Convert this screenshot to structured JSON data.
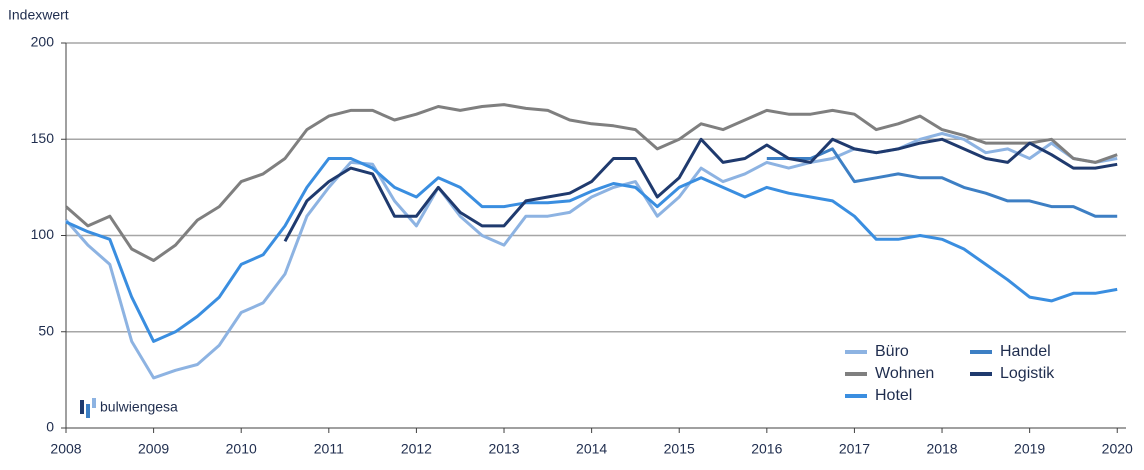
{
  "chart_data": {
    "type": "line",
    "y_axis_label": "Indexwert",
    "logo": "bulwiengesa",
    "x": [
      2008,
      2008.25,
      2008.5,
      2008.75,
      2009,
      2009.25,
      2009.5,
      2009.75,
      2010,
      2010.25,
      2010.5,
      2010.75,
      2011,
      2011.25,
      2011.5,
      2011.75,
      2012,
      2012.25,
      2012.5,
      2012.75,
      2013,
      2013.25,
      2013.5,
      2013.75,
      2014,
      2014.25,
      2014.5,
      2014.75,
      2015,
      2015.25,
      2015.5,
      2015.75,
      2016,
      2016.25,
      2016.5,
      2016.75,
      2017,
      2017.25,
      2017.5,
      2017.75,
      2018,
      2018.25,
      2018.5,
      2018.75,
      2019,
      2019.25,
      2019.5,
      2019.75,
      2020
    ],
    "series": [
      {
        "name": "Büro",
        "color": "#8db3e2",
        "values": [
          108,
          95,
          85,
          45,
          26,
          30,
          33,
          43,
          60,
          65,
          80,
          110,
          125,
          138,
          137,
          118,
          105,
          125,
          110,
          100,
          95,
          110,
          110,
          112,
          120,
          125,
          128,
          110,
          120,
          135,
          128,
          132,
          138,
          135,
          138,
          140,
          145,
          143,
          145,
          150,
          153,
          150,
          143,
          145,
          140,
          148,
          140,
          138,
          140
        ]
      },
      {
        "name": "Wohnen",
        "color": "#7f7f7f",
        "values": [
          115,
          105,
          110,
          93,
          87,
          95,
          108,
          115,
          128,
          132,
          140,
          155,
          162,
          165,
          165,
          160,
          163,
          167,
          165,
          167,
          168,
          166,
          165,
          160,
          158,
          157,
          155,
          145,
          150,
          158,
          155,
          160,
          165,
          163,
          163,
          165,
          163,
          155,
          158,
          162,
          155,
          152,
          148,
          148,
          148,
          150,
          140,
          138,
          142
        ]
      },
      {
        "name": "Hotel",
        "color": "#3a8ee0",
        "values": [
          107,
          102,
          98,
          68,
          45,
          50,
          58,
          68,
          85,
          90,
          105,
          125,
          140,
          140,
          135,
          125,
          120,
          130,
          125,
          115,
          115,
          117,
          117,
          118,
          123,
          127,
          125,
          115,
          125,
          130,
          125,
          120,
          125,
          122,
          120,
          118,
          110,
          98,
          98,
          100,
          98,
          93,
          85,
          77,
          68,
          66,
          70,
          70,
          72
        ]
      },
      {
        "name": "Handel",
        "color": "#3d7fc4",
        "values": [
          null,
          null,
          null,
          null,
          null,
          null,
          null,
          null,
          null,
          null,
          null,
          null,
          null,
          null,
          null,
          null,
          null,
          null,
          null,
          null,
          null,
          null,
          null,
          null,
          null,
          null,
          null,
          null,
          null,
          null,
          null,
          null,
          140,
          140,
          140,
          145,
          128,
          130,
          132,
          130,
          130,
          125,
          122,
          118,
          118,
          115,
          115,
          110,
          110
        ]
      },
      {
        "name": "Logistik",
        "color": "#1f3a6e",
        "values": [
          null,
          null,
          null,
          null,
          null,
          null,
          null,
          null,
          null,
          null,
          97,
          118,
          128,
          135,
          132,
          110,
          110,
          125,
          112,
          105,
          105,
          118,
          120,
          122,
          128,
          140,
          140,
          120,
          130,
          150,
          138,
          140,
          147,
          140,
          138,
          150,
          145,
          143,
          145,
          148,
          150,
          145,
          140,
          138,
          148,
          142,
          135,
          135,
          137
        ]
      }
    ],
    "xlim": [
      2008,
      2020.1
    ],
    "xticks": [
      2008,
      2009,
      2010,
      2011,
      2012,
      2013,
      2014,
      2015,
      2016,
      2017,
      2018,
      2019,
      2020
    ],
    "ylim": [
      0,
      200
    ],
    "yticks": [
      0,
      50,
      100,
      150,
      200
    ],
    "grid": true
  }
}
